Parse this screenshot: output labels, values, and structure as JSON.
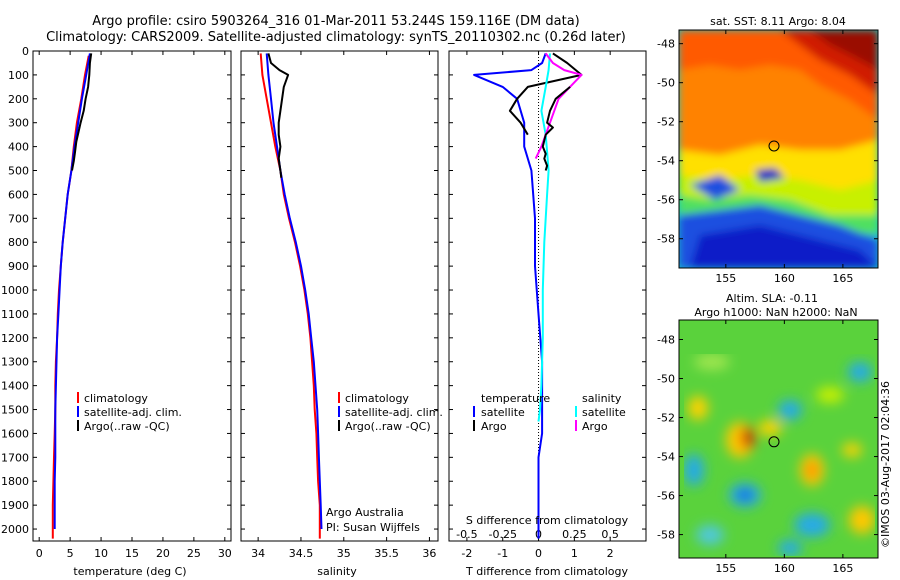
{
  "header": {
    "line1": "Argo profile: csiro 5903264_316 01-Mar-2011 53.244S 159.116E (DM data)",
    "line2": "Climatology: CARS2009. Satellite-adjusted climatology: synTS_20110302.nc (0.26d later)"
  },
  "colors": {
    "climatology": "#ff0000",
    "satellite": "#0000ff",
    "argo": "#000000",
    "sal_satellite": "#00ffff",
    "sal_argo": "#ff00ff"
  },
  "watermark": "©IMOS 03-Aug-2017 02:04:36",
  "legend_labels": {
    "climatology": "climatology",
    "satellite_adj": "satellite-adj. clim.",
    "argo_raw": "Argo(..raw -QC)",
    "temperature": "temperature",
    "salinity": "salinity",
    "satellite": "satellite",
    "argo": "Argo"
  },
  "annotations": {
    "institution": "Argo Australia",
    "pi": "PI: Susan Wijffels"
  },
  "chart_data": [
    {
      "type": "line",
      "xlabel": "temperature (deg C)",
      "xlim": [
        -1,
        31
      ],
      "xticks": [
        0,
        5,
        10,
        15,
        20,
        25,
        30
      ],
      "ylim": [
        2050,
        0
      ],
      "yticks": [
        0,
        100,
        200,
        300,
        400,
        500,
        600,
        700,
        800,
        900,
        1000,
        1100,
        1200,
        1300,
        1400,
        1500,
        1600,
        1700,
        1800,
        1900,
        2000
      ],
      "series": [
        {
          "name": "climatology",
          "color_key": "climatology",
          "x": [
            8.0,
            7.4,
            6.8,
            6.1,
            5.6,
            5.2,
            4.6,
            4.2,
            3.8,
            3.5,
            3.2,
            3.0,
            2.9,
            2.7,
            2.6,
            2.6,
            2.5,
            2.4,
            2.3,
            2.2,
            2.2,
            2.2
          ],
          "y": [
            20,
            100,
            200,
            300,
            400,
            500,
            600,
            700,
            800,
            900,
            1000,
            1100,
            1200,
            1300,
            1400,
            1500,
            1600,
            1700,
            1800,
            1900,
            2000,
            2040
          ]
        },
        {
          "name": "satellite-adj. clim.",
          "color_key": "satellite",
          "x": [
            8.2,
            7.6,
            6.9,
            6.3,
            5.7,
            5.2,
            4.6,
            4.2,
            3.8,
            3.5,
            3.3,
            3.1,
            2.9,
            2.8,
            2.7,
            2.6,
            2.6,
            2.6,
            2.5,
            2.5,
            2.5
          ],
          "y": [
            10,
            100,
            200,
            300,
            400,
            500,
            600,
            700,
            800,
            900,
            1000,
            1100,
            1200,
            1300,
            1400,
            1500,
            1600,
            1700,
            1800,
            1900,
            2000
          ]
        },
        {
          "name": "Argo(..raw -QC)",
          "color_key": "argo",
          "x": [
            8.4,
            8.2,
            8.1,
            7.9,
            7.5,
            7.2,
            6.7,
            6.0,
            5.8,
            5.6,
            5.3
          ],
          "y": [
            10,
            50,
            100,
            150,
            200,
            250,
            300,
            380,
            420,
            460,
            500
          ]
        }
      ]
    },
    {
      "type": "line",
      "xlabel": "salinity",
      "xlim": [
        33.8,
        36.1
      ],
      "xticks": [
        34,
        34.5,
        35,
        35.5,
        36
      ],
      "ylim": [
        2050,
        0
      ],
      "series": [
        {
          "name": "climatology",
          "color_key": "climatology",
          "x": [
            34.03,
            34.05,
            34.1,
            34.15,
            34.2,
            34.26,
            34.3,
            34.36,
            34.43,
            34.49,
            34.54,
            34.58,
            34.61,
            34.63,
            34.65,
            34.66,
            34.68,
            34.69,
            34.7,
            34.72,
            34.72,
            34.72
          ],
          "y": [
            10,
            100,
            200,
            300,
            400,
            500,
            600,
            700,
            800,
            900,
            1000,
            1100,
            1200,
            1300,
            1400,
            1500,
            1600,
            1700,
            1800,
            1900,
            2000,
            2040
          ]
        },
        {
          "name": "satellite-adj. clim.",
          "color_key": "satellite",
          "x": [
            34.1,
            34.12,
            34.15,
            34.18,
            34.22,
            34.26,
            34.31,
            34.37,
            34.44,
            34.5,
            34.55,
            34.59,
            34.62,
            34.65,
            34.67,
            34.69,
            34.7,
            34.71,
            34.72,
            34.73,
            34.74
          ],
          "y": [
            10,
            100,
            200,
            300,
            400,
            500,
            600,
            700,
            800,
            900,
            1000,
            1100,
            1200,
            1300,
            1400,
            1500,
            1600,
            1700,
            1800,
            1900,
            2000
          ]
        },
        {
          "name": "Argo(..raw -QC)",
          "color_key": "argo",
          "x": [
            34.12,
            34.15,
            34.25,
            34.35,
            34.3,
            34.28,
            34.24,
            34.24,
            34.26,
            34.24,
            34.26,
            34.27
          ],
          "y": [
            10,
            50,
            80,
            100,
            150,
            200,
            300,
            350,
            400,
            450,
            500,
            530
          ]
        }
      ]
    },
    {
      "type": "line",
      "xlabel": "T difference from climatology",
      "x2label": "S difference from climatology",
      "xlim": [
        -2.5,
        3.0
      ],
      "xticks": [
        -2,
        -1,
        0,
        1,
        2
      ],
      "s_xlim": [
        -0.625,
        0.75
      ],
      "s_xticks": [
        -0.5,
        -0.25,
        0,
        0.25,
        0.5
      ],
      "s_xticklabels": [
        "-0.5",
        "-0.25",
        "0",
        "0.25",
        "0.5"
      ],
      "ylim": [
        2050,
        0
      ],
      "series": [
        {
          "name": "temperature satellite",
          "color_key": "satellite",
          "axis": "T",
          "x": [
            0.2,
            0.1,
            -0.2,
            -1.8,
            -1.0,
            -0.6,
            -0.4,
            -0.4,
            -0.2,
            -0.1,
            -0.1,
            0.0,
            0.1,
            0.1,
            0.1,
            0.0,
            0.0,
            0.0,
            0.0,
            0.0,
            0.0
          ],
          "y": [
            10,
            50,
            80,
            100,
            150,
            200,
            300,
            400,
            500,
            700,
            900,
            1100,
            1300,
            1500,
            1600,
            1700,
            1800,
            1900,
            1950,
            2000,
            2040
          ]
        },
        {
          "name": "temperature Argo",
          "color_key": "argo",
          "axis": "T",
          "x": [
            0.4,
            0.8,
            1.2,
            -0.3,
            -0.6,
            -0.8,
            -0.5,
            -0.3
          ],
          "y": [
            10,
            50,
            100,
            150,
            200,
            250,
            300,
            350
          ]
        },
        {
          "name": "salinity satellite",
          "color_key": "sal_satellite",
          "axis": "S",
          "x": [
            0.08,
            0.07,
            0.05,
            0.02,
            0.05,
            0.07,
            0.06,
            0.04,
            0.03,
            0.03,
            0.02,
            0.01,
            0.0
          ],
          "y": [
            10,
            80,
            150,
            250,
            350,
            500,
            600,
            800,
            1000,
            1200,
            1400,
            1500,
            1550
          ]
        },
        {
          "name": "salinity Argo",
          "color_key": "sal_argo",
          "axis": "S",
          "x": [
            0.05,
            0.1,
            0.18,
            0.3,
            0.14,
            0.08,
            0.02,
            -0.02
          ],
          "y": [
            10,
            50,
            80,
            100,
            200,
            300,
            400,
            450
          ]
        },
        {
          "name": "salinity Argo raw",
          "color_key": "argo",
          "axis": "S",
          "x": [
            0.22,
            0.12,
            0.08,
            0.06,
            0.1,
            0.05,
            0.03,
            0.05,
            0.04,
            0.06,
            0.05
          ],
          "y": [
            150,
            200,
            250,
            300,
            320,
            350,
            400,
            430,
            450,
            480,
            500
          ]
        }
      ]
    },
    {
      "type": "heatmap",
      "title": "sat. SST: 8.11 Argo: 8.04",
      "xlim": [
        151,
        168
      ],
      "ylim": [
        -59.5,
        -47.3
      ],
      "xticks": [
        155,
        160,
        165
      ],
      "yticks": [
        -48,
        -50,
        -52,
        -54,
        -56,
        -58
      ],
      "marker": {
        "lon": 159.116,
        "lat": -53.244
      }
    },
    {
      "type": "heatmap",
      "title": "Altim. SLA: -0.11",
      "subtitle": "Argo h1000: NaN h2000: NaN",
      "xlim": [
        151,
        168
      ],
      "ylim": [
        -59.2,
        -47.0
      ],
      "xticks": [
        155,
        160,
        165
      ],
      "yticks": [
        -48,
        -50,
        -52,
        -54,
        -56,
        -58
      ],
      "marker": {
        "lon": 159.116,
        "lat": -53.244
      }
    }
  ]
}
